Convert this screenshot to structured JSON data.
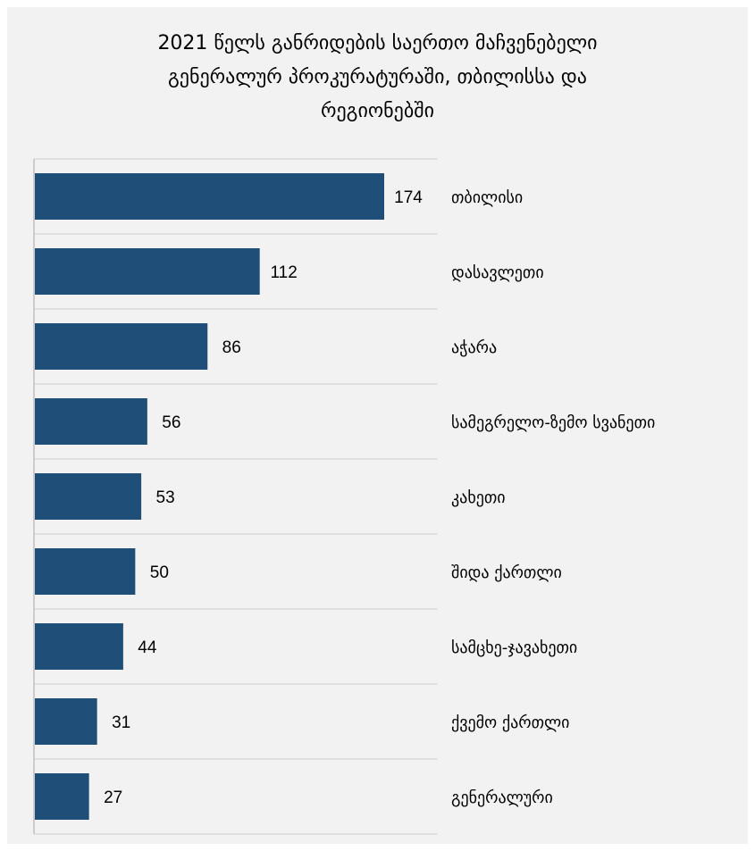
{
  "chart_data": {
    "type": "bar",
    "orientation": "horizontal",
    "title_lines": [
      "2021 წელს განრიდების საერთო მაჩვენებელი",
      "გენერალურ პროკურატურაში, თბილისსა და",
      "რეგიონებში"
    ],
    "categories": [
      "თბილისი",
      "დასავლეთი",
      "აჭარა",
      "სამეგრელო-ზემო სვანეთი",
      "კახეთი",
      "შიდა ქართლი",
      "სამცხე-ჯავახეთი",
      "ქვემო ქართლი",
      "გენერალური"
    ],
    "values": [
      174,
      112,
      86,
      56,
      53,
      50,
      44,
      31,
      27
    ],
    "xlim": [
      0,
      174
    ],
    "bar_color": "#1f4e79",
    "grid": "horizontal separators",
    "data_labels": true,
    "legend": "none"
  }
}
